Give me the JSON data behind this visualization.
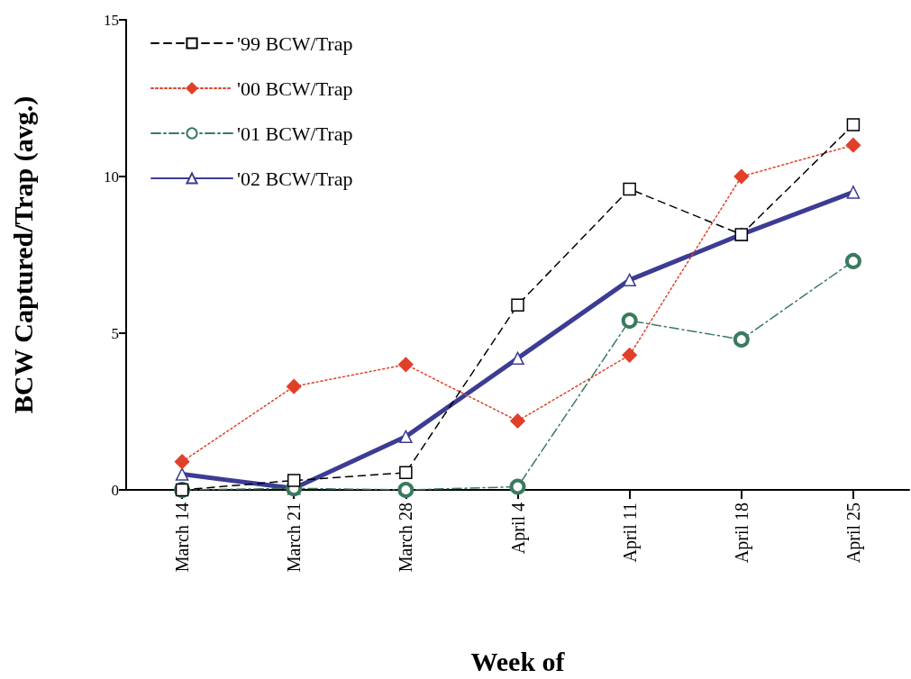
{
  "chart_data": {
    "type": "line",
    "xlabel": "Week of",
    "ylabel": "BCW Captured/Trap (avg.)",
    "categories": [
      "March 14",
      "March 21",
      "March 28",
      "April 4",
      "April 11",
      "April 18",
      "April 25"
    ],
    "ylim": [
      0,
      15
    ],
    "yticks": [
      0,
      5,
      10,
      15
    ],
    "grid": false,
    "legend": "top left",
    "series": [
      {
        "name": "'99 BCW/Trap",
        "color": "#000000",
        "marker": "square",
        "line_style": "dashed",
        "values": [
          0,
          0.3,
          0.55,
          5.9,
          9.6,
          8.15,
          11.65
        ]
      },
      {
        "name": "'00 BCW/Trap",
        "color": "#e0402a",
        "marker": "diamond",
        "line_style": "dotted",
        "values": [
          0.9,
          3.3,
          4.0,
          2.2,
          4.3,
          10,
          11
        ]
      },
      {
        "name": "'01 BCW/Trap",
        "color": "#3a7a5e",
        "marker": "circle",
        "line_style": "dashdot",
        "values": [
          0,
          0.05,
          0,
          0.1,
          5.4,
          4.8,
          7.3
        ]
      },
      {
        "name": "'02 BCW/Trap",
        "color": "#3c3c94",
        "marker": "triangle",
        "line_style": "solid",
        "values": [
          0.5,
          0.05,
          1.7,
          4.2,
          6.7,
          8.15,
          9.5
        ]
      }
    ]
  }
}
